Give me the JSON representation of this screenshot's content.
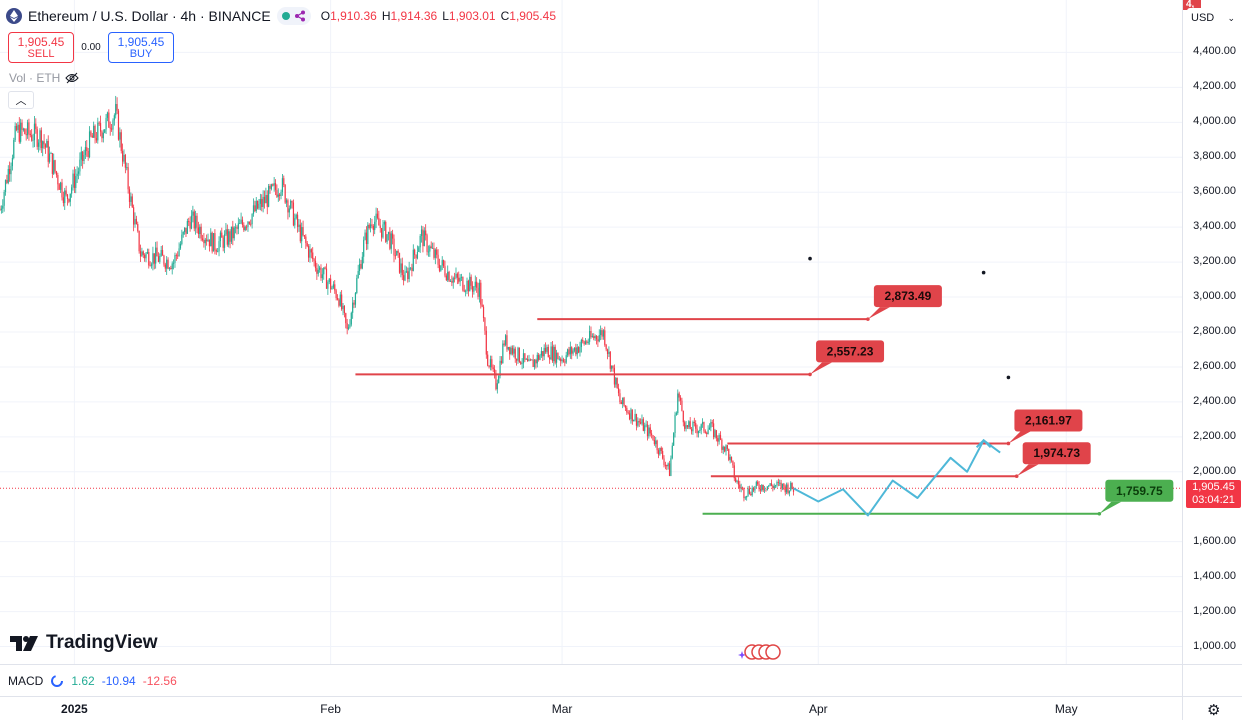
{
  "legend": {
    "symbol": "Ethereum / U.S. Dollar · 4h · BINANCE",
    "open_label": "O",
    "open": "1,910.36",
    "high_label": "H",
    "high": "1,914.36",
    "low_label": "L",
    "low": "1,903.01",
    "close_label": "C",
    "close": "1,905.45"
  },
  "trade": {
    "sell_price": "1,905.45",
    "sell_label": "SELL",
    "spread": "0.00",
    "buy_price": "1,905.45",
    "buy_label": "BUY"
  },
  "volume_label": "Vol · ETH",
  "logo_text": "TradingView",
  "macd": {
    "label": "MACD",
    "v1": "1.62",
    "v2": "-10.94",
    "v3": "-12.56"
  },
  "currency": "USD",
  "current_price": {
    "price": "1,905.45",
    "countdown": "03:04:21"
  },
  "top_tag": "4,",
  "colors": {
    "up": "#22ab94",
    "down": "#f23645",
    "level_red": "#e0444a",
    "level_green": "#4caf50",
    "projection": "#4eb8d8"
  },
  "chart_data": {
    "type": "candlestick",
    "y_ticks": [
      "4,400.00",
      "4,200.00",
      "4,000.00",
      "3,800.00",
      "3,600.00",
      "3,400.00",
      "3,200.00",
      "3,000.00",
      "2,800.00",
      "2,600.00",
      "2,400.00",
      "2,200.00",
      "2,000.00",
      "1,600.00",
      "1,400.00",
      "1,200.00",
      "1,000.00"
    ],
    "ylim": [
      900,
      4700
    ],
    "x_ticks": [
      "2025",
      "Feb",
      "Mar",
      "Apr",
      "May"
    ],
    "x_tick_dates": [
      "2025-01-01",
      "2025-02-01",
      "2025-03-01",
      "2025-04-01",
      "2025-05-01"
    ],
    "xlim": [
      "2024-12-23",
      "2025-05-15"
    ],
    "close_path": [
      [
        "2024-12-23",
        3500
      ],
      [
        "2024-12-25",
        3950
      ],
      [
        "2024-12-28",
        3920
      ],
      [
        "2024-12-31",
        3560
      ],
      [
        "2025-01-03",
        3900
      ],
      [
        "2025-01-06",
        4050
      ],
      [
        "2025-01-08",
        3500
      ],
      [
        "2025-01-09",
        3250
      ],
      [
        "2025-01-13",
        3200
      ],
      [
        "2025-01-15",
        3450
      ],
      [
        "2025-01-18",
        3300
      ],
      [
        "2025-01-20",
        3350
      ],
      [
        "2025-01-23",
        3500
      ],
      [
        "2025-01-26",
        3650
      ],
      [
        "2025-01-28",
        3400
      ],
      [
        "2025-01-30",
        3200
      ],
      [
        "2025-02-02",
        3000
      ],
      [
        "2025-02-03",
        2800
      ],
      [
        "2025-02-05",
        3300
      ],
      [
        "2025-02-06",
        3450
      ],
      [
        "2025-02-08",
        3350
      ],
      [
        "2025-02-10",
        3100
      ],
      [
        "2025-02-12",
        3350
      ],
      [
        "2025-02-14",
        3200
      ],
      [
        "2025-02-16",
        3100
      ],
      [
        "2025-02-19",
        3050
      ],
      [
        "2025-02-20",
        2650
      ],
      [
        "2025-02-21",
        2500
      ],
      [
        "2025-02-22",
        2750
      ],
      [
        "2025-02-25",
        2600
      ],
      [
        "2025-02-27",
        2700
      ],
      [
        "2025-03-01",
        2650
      ],
      [
        "2025-03-04",
        2750
      ],
      [
        "2025-03-06",
        2800
      ],
      [
        "2025-03-08",
        2400
      ],
      [
        "2025-03-10",
        2300
      ],
      [
        "2025-03-12",
        2200
      ],
      [
        "2025-03-14",
        2000
      ],
      [
        "2025-03-15",
        2450
      ],
      [
        "2025-03-16",
        2250
      ],
      [
        "2025-03-19",
        2250
      ],
      [
        "2025-03-21",
        2120
      ],
      [
        "2025-03-22",
        1950
      ],
      [
        "2025-03-23",
        1880
      ],
      [
        "2025-03-25",
        1920
      ],
      [
        "2025-03-27",
        1920
      ],
      [
        "2025-03-29",
        1905
      ]
    ],
    "candle_seed": 7,
    "levels": [
      {
        "price": 2873.49,
        "label": "2,873.49",
        "from": "2025-02-26",
        "to": "2025-04-07",
        "color": "red"
      },
      {
        "price": 2557.23,
        "label": "2,557.23",
        "from": "2025-02-04",
        "to": "2025-03-31",
        "color": "red"
      },
      {
        "price": 2161.97,
        "label": "2,161.97",
        "from": "2025-03-21",
        "to": "2025-04-24",
        "color": "red"
      },
      {
        "price": 1974.73,
        "label": "1,974.73",
        "from": "2025-03-19",
        "to": "2025-04-25",
        "color": "red"
      },
      {
        "price": 1759.75,
        "label": "1,759.75",
        "from": "2025-03-18",
        "to": "2025-05-05",
        "color": "green"
      }
    ],
    "projection": [
      [
        "2025-03-29",
        1905
      ],
      [
        "2025-04-01",
        1830
      ],
      [
        "2025-04-04",
        1900
      ],
      [
        "2025-04-07",
        1750
      ],
      [
        "2025-04-10",
        1950
      ],
      [
        "2025-04-13",
        1850
      ],
      [
        "2025-04-17",
        2080
      ],
      [
        "2025-04-19",
        2000
      ],
      [
        "2025-04-21",
        2180
      ],
      [
        "2025-04-23",
        2110
      ]
    ],
    "current_price": 1905.45,
    "markers": [
      [
        "2025-03-31",
        3220
      ],
      [
        "2025-04-21",
        3140
      ],
      [
        "2025-04-24",
        2540
      ]
    ]
  }
}
